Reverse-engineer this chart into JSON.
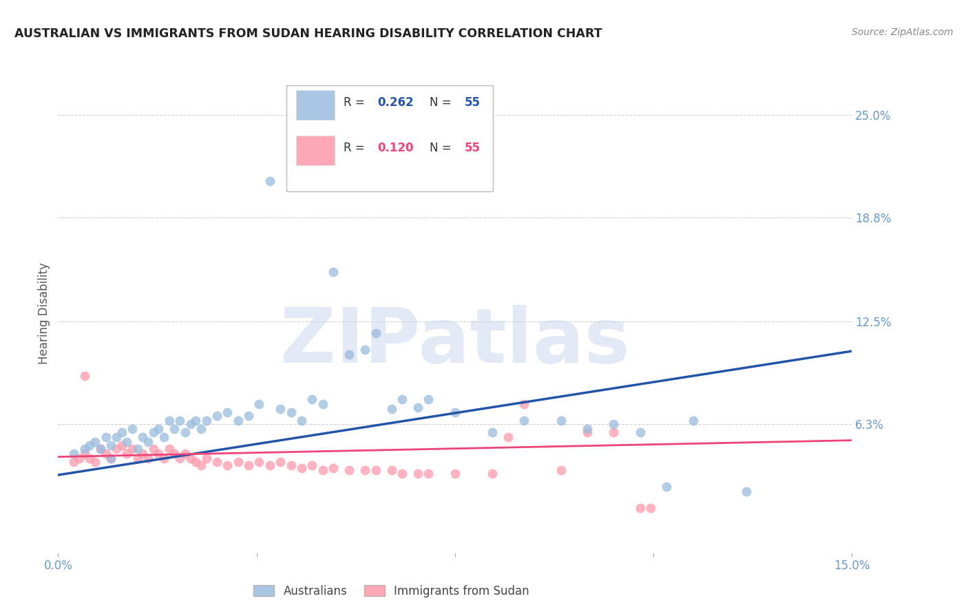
{
  "title": "AUSTRALIAN VS IMMIGRANTS FROM SUDAN HEARING DISABILITY CORRELATION CHART",
  "source": "Source: ZipAtlas.com",
  "ylabel": "Hearing Disability",
  "ytick_labels": [
    "25.0%",
    "18.8%",
    "12.5%",
    "6.3%"
  ],
  "ytick_values": [
    0.25,
    0.188,
    0.125,
    0.063
  ],
  "xmin": 0.0,
  "xmax": 0.15,
  "ymin": -0.015,
  "ymax": 0.275,
  "blue_color": "#99BBDD",
  "pink_color": "#FF99AA",
  "line_blue_color": "#2255AA",
  "line_pink_color": "#EE4477",
  "watermark_text": "ZIPatlas",
  "blue_scatter_x": [
    0.003,
    0.005,
    0.006,
    0.007,
    0.008,
    0.009,
    0.01,
    0.01,
    0.011,
    0.012,
    0.013,
    0.014,
    0.015,
    0.016,
    0.017,
    0.018,
    0.019,
    0.02,
    0.021,
    0.022,
    0.023,
    0.024,
    0.025,
    0.026,
    0.027,
    0.028,
    0.03,
    0.032,
    0.034,
    0.036,
    0.038,
    0.04,
    0.042,
    0.044,
    0.046,
    0.048,
    0.05,
    0.052,
    0.055,
    0.058,
    0.06,
    0.063,
    0.065,
    0.068,
    0.07,
    0.075,
    0.082,
    0.088,
    0.095,
    0.1,
    0.105,
    0.11,
    0.115,
    0.12,
    0.13
  ],
  "blue_scatter_y": [
    0.045,
    0.048,
    0.05,
    0.052,
    0.048,
    0.055,
    0.05,
    0.042,
    0.055,
    0.058,
    0.052,
    0.06,
    0.048,
    0.055,
    0.052,
    0.058,
    0.06,
    0.055,
    0.065,
    0.06,
    0.065,
    0.058,
    0.063,
    0.065,
    0.06,
    0.065,
    0.068,
    0.07,
    0.065,
    0.068,
    0.075,
    0.21,
    0.072,
    0.07,
    0.065,
    0.078,
    0.075,
    0.155,
    0.105,
    0.108,
    0.118,
    0.072,
    0.078,
    0.073,
    0.078,
    0.07,
    0.058,
    0.065,
    0.065,
    0.06,
    0.063,
    0.058,
    0.025,
    0.065,
    0.022
  ],
  "pink_scatter_x": [
    0.003,
    0.004,
    0.005,
    0.006,
    0.007,
    0.008,
    0.009,
    0.01,
    0.011,
    0.012,
    0.013,
    0.014,
    0.015,
    0.016,
    0.017,
    0.018,
    0.019,
    0.02,
    0.021,
    0.022,
    0.023,
    0.024,
    0.025,
    0.026,
    0.027,
    0.028,
    0.03,
    0.032,
    0.034,
    0.036,
    0.038,
    0.04,
    0.042,
    0.044,
    0.046,
    0.048,
    0.05,
    0.052,
    0.055,
    0.058,
    0.06,
    0.063,
    0.065,
    0.068,
    0.07,
    0.075,
    0.082,
    0.088,
    0.095,
    0.1,
    0.105,
    0.085,
    0.11,
    0.112,
    0.005
  ],
  "pink_scatter_y": [
    0.04,
    0.042,
    0.045,
    0.042,
    0.04,
    0.048,
    0.045,
    0.042,
    0.048,
    0.05,
    0.045,
    0.048,
    0.042,
    0.045,
    0.042,
    0.048,
    0.045,
    0.042,
    0.048,
    0.045,
    0.042,
    0.045,
    0.042,
    0.04,
    0.038,
    0.042,
    0.04,
    0.038,
    0.04,
    0.038,
    0.04,
    0.038,
    0.04,
    0.038,
    0.036,
    0.038,
    0.035,
    0.036,
    0.035,
    0.035,
    0.035,
    0.035,
    0.033,
    0.033,
    0.033,
    0.033,
    0.033,
    0.075,
    0.035,
    0.058,
    0.058,
    0.055,
    0.012,
    0.012,
    0.092
  ],
  "blue_line_x": [
    0.0,
    0.15
  ],
  "blue_line_y": [
    0.032,
    0.107
  ],
  "pink_line_x": [
    0.0,
    0.15
  ],
  "pink_line_y": [
    0.043,
    0.053
  ],
  "background_color": "#ffffff",
  "grid_color": "#cccccc",
  "title_color": "#222222",
  "source_color": "#888888",
  "tick_label_color": "#6699CC",
  "ylabel_color": "#555555"
}
